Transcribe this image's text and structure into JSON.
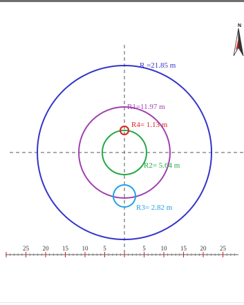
{
  "diagram": {
    "circles": [
      {
        "id": "R",
        "label": "R  =21.85 m",
        "color": "#3333cc"
      },
      {
        "id": "R1",
        "label": "R1=11.97 m",
        "color": "#a040b0"
      },
      {
        "id": "R2",
        "label": "R2=  5.64 m",
        "color": "#22aa44"
      },
      {
        "id": "R3",
        "label": "R3=  2.82 m",
        "color": "#1ea0e6"
      },
      {
        "id": "R4",
        "label": "R4=  1.13 m",
        "color": "#e02020"
      }
    ],
    "north_letter": "N",
    "scale_left": [
      "25",
      "20",
      "15",
      "10",
      "5"
    ],
    "scale_right": [
      "5",
      "10",
      "15",
      "20",
      "25"
    ]
  }
}
